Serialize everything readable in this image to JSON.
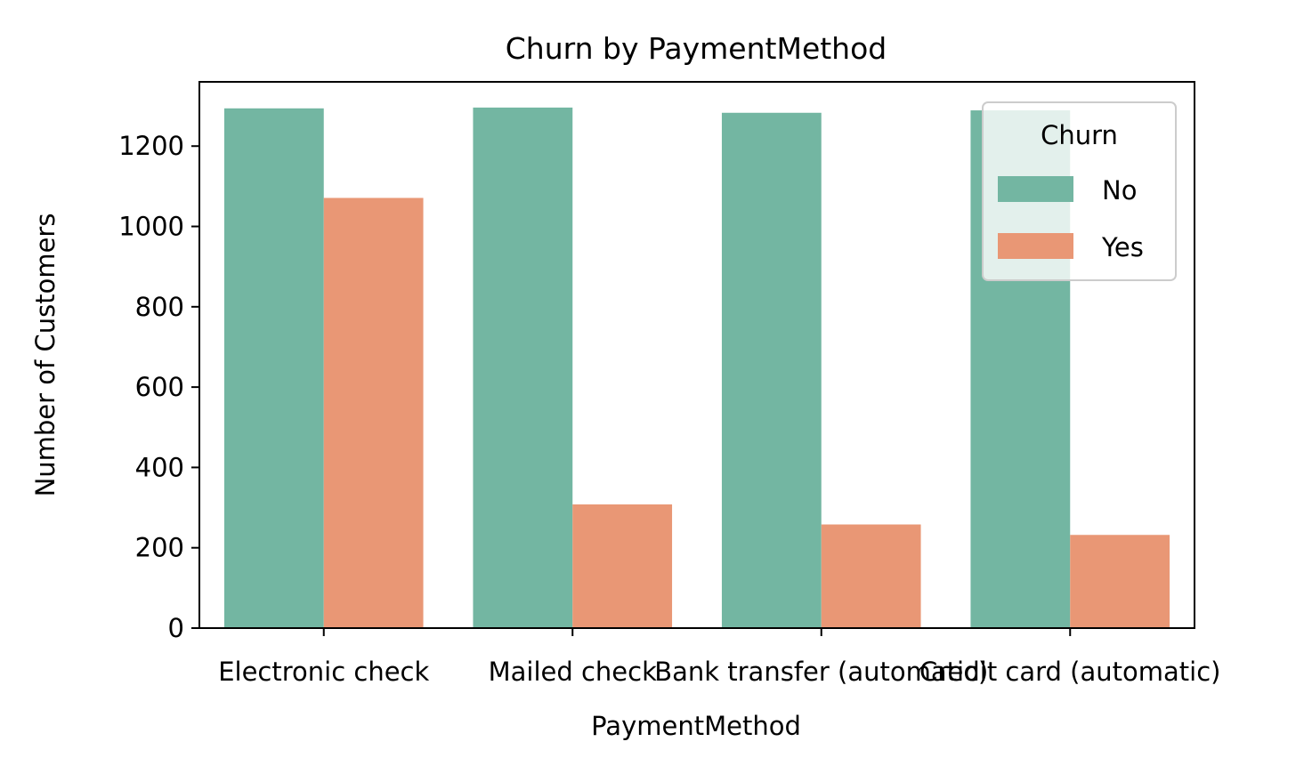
{
  "chart_data": {
    "type": "bar",
    "title": "Churn by PaymentMethod",
    "xlabel": "PaymentMethod",
    "ylabel": "Number of Customers",
    "categories": [
      "Electronic check",
      "Mailed check",
      "Bank transfer (automatic)",
      "Credit card (automatic)"
    ],
    "series": [
      {
        "name": "No",
        "values": [
          1294,
          1296,
          1283,
          1289
        ],
        "color": "#73b6a2"
      },
      {
        "name": "Yes",
        "values": [
          1071,
          308,
          258,
          232
        ],
        "color": "#e99775"
      }
    ],
    "ylim": [
      0,
      1360
    ],
    "yticks": [
      0,
      200,
      400,
      600,
      800,
      1000,
      1200
    ],
    "grid": false,
    "legend": {
      "title": "Churn",
      "placement": "top-right"
    }
  }
}
